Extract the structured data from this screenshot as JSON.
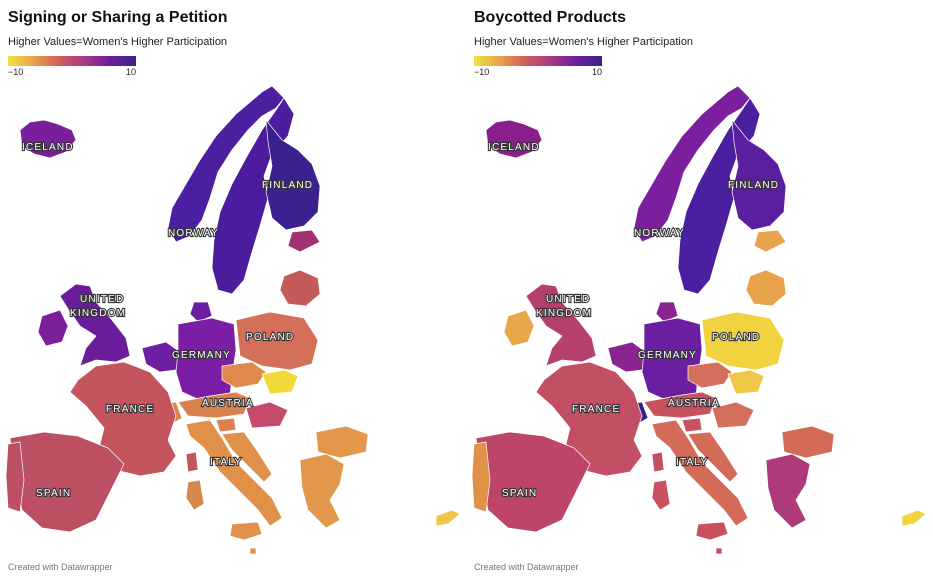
{
  "panels": [
    {
      "title": "Signing or Sharing a Petition",
      "subtitle": "Higher Values=Women's Higher Participation",
      "legend": {
        "min_label": "−10",
        "max_label": "10",
        "scale": [
          "#f0e442",
          "#e8a24a",
          "#d15e5a",
          "#a93a86",
          "#6d1ea0",
          "#3a2583"
        ]
      },
      "labels": {
        "iceland": "ICELAND",
        "finland": "FINLAND",
        "norway": "NORWAY",
        "uk1": "UNITED",
        "uk2": "KINGDOM",
        "germany": "GERMANY",
        "poland": "POLAND",
        "france": "FRANCE",
        "austria": "AUSTRIA",
        "italy": "ITALY",
        "spain": "SPAIN"
      },
      "colors": {
        "iceland": "#7a1f9c",
        "norway": "#4a1fa0",
        "sweden": "#4b1d9e",
        "finland": "#3d208f",
        "estonia": "#a3306f",
        "baltics": "#c45a5a",
        "uk": "#6a1d9a",
        "ireland": "#7a209a",
        "denmark": "#6b1fa0",
        "benelux": "#6e1ea3",
        "germany": "#7b1ea6",
        "poland": "#d4705a",
        "czechia": "#dd8a4c",
        "slovakia": "#f2d93a",
        "austria": "#d9824e",
        "switzerland": "#d7874c",
        "france": "#c4555e",
        "spain": "#bd4f62",
        "portugal": "#bd4f62",
        "italy": "#e09048",
        "slovenia": "#d9824e",
        "hungary": "#c44c6a",
        "croatia": "#e09048",
        "bulgaria": "#e3974a",
        "greece": "#e3974a",
        "cyprus": "#eec64a",
        "sardinia": "#d7874c",
        "sicily": "#e09048",
        "corsica": "#c4555e",
        "malta": "#e09048"
      }
    },
    {
      "title": "Boycotted Products",
      "subtitle": "Higher Values=Women's Higher Participation",
      "legend": {
        "min_label": "−10",
        "max_label": "10",
        "scale": [
          "#f0e442",
          "#e8a24a",
          "#d15e5a",
          "#a93a86",
          "#6d1ea0",
          "#3a2583"
        ]
      },
      "labels": {
        "iceland": "ICELAND",
        "finland": "FINLAND",
        "norway": "NORWAY",
        "uk1": "UNITED",
        "uk2": "KINGDOM",
        "germany": "GERMANY",
        "poland": "POLAND",
        "france": "FRANCE",
        "austria": "AUSTRIA",
        "italy": "ITALY",
        "spain": "SPAIN"
      },
      "colors": {
        "iceland": "#8a1f8c",
        "norway": "#7b1f9f",
        "sweden": "#4a1fa0",
        "finland": "#5a1e9e",
        "estonia": "#e8a24a",
        "baltics": "#e8a24a",
        "uk": "#b5406d",
        "ireland": "#e8a84a",
        "denmark": "#8a2490",
        "benelux": "#8a2490",
        "germany": "#6a1fa1",
        "poland": "#f0d33f",
        "czechia": "#d36f5c",
        "slovakia": "#efc745",
        "austria": "#c9505f",
        "switzerland": "#33208a",
        "france": "#c24f63",
        "spain": "#bd4568",
        "portugal": "#e09048",
        "italy": "#d46a58",
        "slovenia": "#c9505f",
        "hungary": "#d36f5c",
        "croatia": "#d46a58",
        "bulgaria": "#d46a58",
        "greece": "#ae3a7a",
        "cyprus": "#f0d33f",
        "sardinia": "#c9505f",
        "sicily": "#c9505f",
        "corsica": "#c24f63",
        "malta": "#c24f63"
      }
    }
  ],
  "credit": "Created with Datawrapper"
}
